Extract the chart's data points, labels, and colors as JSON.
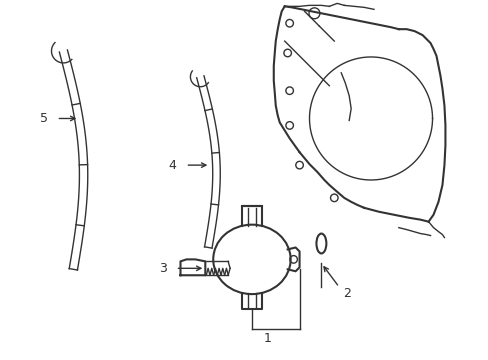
{
  "bg_color": "#ffffff",
  "line_color": "#333333",
  "figsize": [
    4.89,
    3.6
  ],
  "dpi": 100,
  "lw": 1.0,
  "lw2": 1.5
}
